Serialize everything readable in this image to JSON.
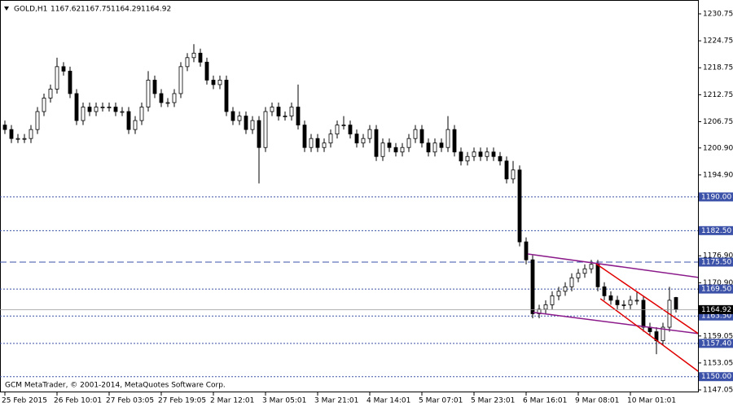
{
  "chart_data": {
    "type": "candlestick",
    "title": "GOLD,H1",
    "header_values": [
      {
        "value": 1167.62,
        "label": "1167.62"
      },
      {
        "value": 1167.75,
        "label": "1167.75"
      },
      {
        "value": 1164.29,
        "label": "1164.29"
      },
      {
        "value": 1164.92,
        "label": "1164.92"
      }
    ],
    "footer": "GCM MetaTrader, © 2001-2014, MetaQuotes Software Corp.",
    "open": [
      1206,
      1205,
      1203,
      1203,
      1203,
      1205,
      1209,
      1212,
      1214,
      1219,
      1218,
      1213,
      1207,
      1210,
      1209,
      1210,
      1210,
      1210,
      1209,
      1209,
      1205,
      1207,
      1210,
      1216,
      1213,
      1211,
      1211,
      1213,
      1219,
      1221,
      1222,
      1220,
      1216,
      1215,
      1216,
      1209,
      1207,
      1208,
      1205,
      1207,
      1201,
      1209,
      1210,
      1208,
      1208,
      1210,
      1206,
      1201,
      1203,
      1201,
      1202,
      1204,
      1206,
      1206,
      1204,
      1202,
      1203,
      1205,
      1199,
      1202,
      1201,
      1200,
      1201,
      1203,
      1205,
      1202,
      1200,
      1202,
      1201,
      1205,
      1200,
      1198,
      1199,
      1200,
      1199,
      1200,
      1199,
      1198,
      1194,
      1196,
      1180,
      1176,
      1164,
      1165,
      1166,
      1168,
      1169,
      1170,
      1172,
      1173,
      1174,
      1175,
      1170,
      1168,
      1167,
      1166,
      1166,
      1167,
      1167,
      1161,
      1160,
      1158,
      1161,
      1167.62
    ],
    "high": [
      1207,
      1206,
      1204,
      1204,
      1206,
      1210,
      1213,
      1215,
      1221,
      1220,
      1219,
      1214,
      1211,
      1211,
      1211,
      1211,
      1211,
      1211,
      1210,
      1210,
      1208,
      1211,
      1218,
      1217,
      1214,
      1212,
      1214,
      1220,
      1222,
      1224,
      1223,
      1221,
      1217,
      1217,
      1217,
      1210,
      1209,
      1209,
      1208,
      1208,
      1210,
      1211,
      1211,
      1209,
      1211,
      1215,
      1207,
      1204,
      1204,
      1203,
      1205,
      1207,
      1208,
      1207,
      1205,
      1204,
      1206,
      1206,
      1203,
      1203,
      1202,
      1202,
      1204,
      1206,
      1206,
      1203,
      1203,
      1203,
      1208,
      1206,
      1201,
      1200,
      1201,
      1201,
      1201,
      1201,
      1200,
      1199,
      1198,
      1197,
      1181,
      1177,
      1166,
      1167,
      1169,
      1170,
      1171,
      1173,
      1174,
      1175,
      1176,
      1176,
      1171,
      1169,
      1168,
      1167,
      1168,
      1169,
      1168,
      1162,
      1161,
      1162,
      1170,
      1167.75
    ],
    "low": [
      1204,
      1202,
      1202,
      1202,
      1202,
      1204,
      1208,
      1211,
      1213,
      1217,
      1212,
      1206,
      1206,
      1208,
      1208,
      1209,
      1209,
      1208,
      1208,
      1204,
      1204,
      1206,
      1209,
      1212,
      1210,
      1210,
      1210,
      1212,
      1218,
      1220,
      1219,
      1215,
      1214,
      1214,
      1208,
      1206,
      1206,
      1204,
      1204,
      1193,
      1200,
      1208,
      1207,
      1207,
      1207,
      1205,
      1200,
      1200,
      1200,
      1200,
      1201,
      1203,
      1205,
      1203,
      1201,
      1201,
      1202,
      1198,
      1198,
      1200,
      1199,
      1199,
      1200,
      1202,
      1201,
      1199,
      1199,
      1200,
      1200,
      1199,
      1197,
      1197,
      1198,
      1198,
      1198,
      1198,
      1197,
      1193,
      1193,
      1179,
      1175,
      1163,
      1163,
      1164,
      1165,
      1167,
      1168,
      1169,
      1171,
      1172,
      1173,
      1169,
      1167,
      1166,
      1165,
      1165,
      1165,
      1166,
      1160,
      1159,
      1155,
      1157,
      1160,
      1164.29
    ],
    "close": [
      1205,
      1203,
      1203,
      1203,
      1205,
      1209,
      1212,
      1214,
      1219,
      1218,
      1213,
      1207,
      1210,
      1209,
      1210,
      1210,
      1210,
      1209,
      1209,
      1205,
      1207,
      1210,
      1216,
      1213,
      1211,
      1211,
      1213,
      1219,
      1221,
      1222,
      1220,
      1216,
      1215,
      1216,
      1209,
      1207,
      1208,
      1205,
      1207,
      1201,
      1209,
      1210,
      1208,
      1208,
      1210,
      1206,
      1201,
      1203,
      1201,
      1202,
      1204,
      1206,
      1206,
      1204,
      1202,
      1203,
      1205,
      1199,
      1202,
      1201,
      1200,
      1201,
      1203,
      1205,
      1202,
      1200,
      1202,
      1201,
      1205,
      1200,
      1198,
      1199,
      1200,
      1199,
      1200,
      1199,
      1198,
      1194,
      1196,
      1180,
      1176,
      1164,
      1165,
      1166,
      1168,
      1169,
      1170,
      1172,
      1173,
      1174,
      1175,
      1170,
      1168,
      1167,
      1166,
      1166,
      1167,
      1167,
      1161,
      1160,
      1158,
      1161,
      1167,
      1164.92
    ],
    "xlabels": [
      {
        "index": 0,
        "label": "25 Feb 2015"
      },
      {
        "index": 8,
        "label": "26 Feb 10:01"
      },
      {
        "index": 16,
        "label": "27 Feb 03:05"
      },
      {
        "index": 24,
        "label": "27 Feb 19:05"
      },
      {
        "index": 32,
        "label": "2 Mar 12:01"
      },
      {
        "index": 40,
        "label": "3 Mar 05:01"
      },
      {
        "index": 48,
        "label": "3 Mar 21:01"
      },
      {
        "index": 56,
        "label": "4 Mar 14:01"
      },
      {
        "index": 64,
        "label": "5 Mar 07:01"
      },
      {
        "index": 72,
        "label": "5 Mar 23:01"
      },
      {
        "index": 80,
        "label": "6 Mar 16:01"
      },
      {
        "index": 88,
        "label": "9 Mar 08:01"
      },
      {
        "index": 96,
        "label": "10 Mar 01:01"
      }
    ],
    "ylim": [
      1147.05,
      1230.75
    ],
    "yticks": [
      {
        "value": 1230.75,
        "label": "1230.75"
      },
      {
        "value": 1224.75,
        "label": "1224.75"
      },
      {
        "value": 1218.75,
        "label": "1218.75"
      },
      {
        "value": 1212.75,
        "label": "1212.75"
      },
      {
        "value": 1206.75,
        "label": "1206.75"
      },
      {
        "value": 1200.9,
        "label": "1200.90"
      },
      {
        "value": 1194.9,
        "label": "1194.90"
      },
      {
        "value": 1176.9,
        "label": "1176.90"
      },
      {
        "value": 1170.9,
        "label": "1170.90"
      },
      {
        "value": 1159.05,
        "label": "1159.05"
      },
      {
        "value": 1153.05,
        "label": "1153.05"
      },
      {
        "value": 1147.05,
        "label": "1147.05"
      }
    ],
    "levels": [
      {
        "value": 1190,
        "label": "1190.00",
        "style": "dotted"
      },
      {
        "value": 1182.5,
        "label": "1182.50",
        "style": "dotted"
      },
      {
        "value": 1175.5,
        "label": "1175.50",
        "style": "dashed"
      },
      {
        "value": 1169.5,
        "label": "1169.50",
        "style": "dotted"
      },
      {
        "value": 1163.5,
        "label": "1163.50",
        "style": "dotted"
      },
      {
        "value": 1157.4,
        "label": "1157.40",
        "style": "dotted"
      },
      {
        "value": 1150,
        "label": "1150.00",
        "style": "dotted"
      }
    ],
    "level_color": "#3c52a8",
    "trendlines": [
      {
        "color": "#8b1a8b",
        "points": [
          [
            80.25,
            1177.3
          ],
          [
            106.4,
            1172.1
          ]
        ]
      },
      {
        "color": "#8b1a8b",
        "points": [
          [
            81.1,
            1164.3
          ],
          [
            106.4,
            1159.6
          ]
        ]
      },
      {
        "color": "#e00000",
        "points": [
          [
            90.75,
            1175.1
          ],
          [
            106.4,
            1159.6
          ]
        ]
      },
      {
        "color": "#e00000",
        "points": [
          [
            91.4,
            1167.35
          ],
          [
            106.4,
            1151.2
          ]
        ]
      }
    ]
  }
}
